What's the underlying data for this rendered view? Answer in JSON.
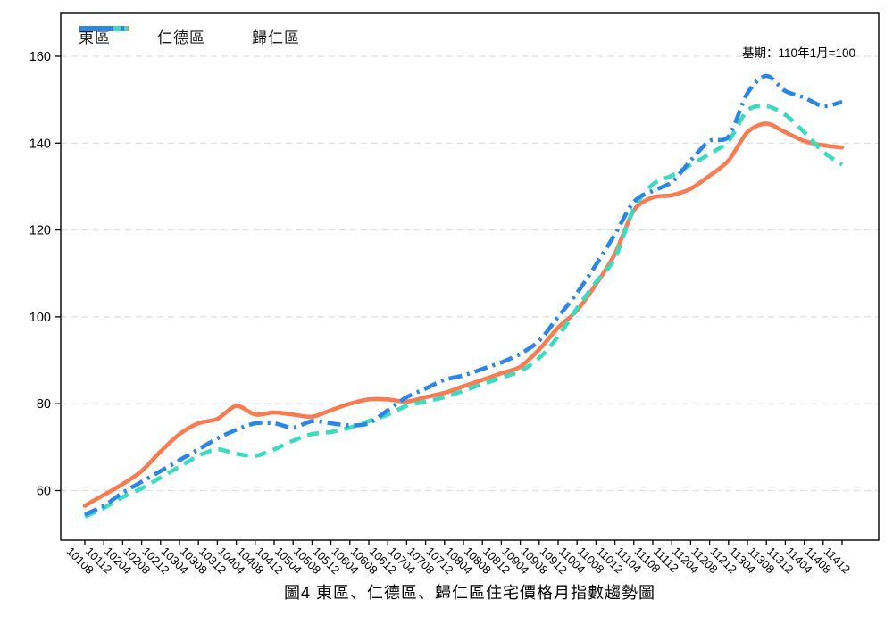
{
  "title": "圖4 東區、仁德區、歸仁區住宅價格月指數趨勢圖",
  "base_period_note": "基期：110年1月=100",
  "colors": {
    "dong": "#F87C52",
    "rende": "#3CDBC0",
    "guiren": "#2B87E3",
    "grid": "#dadfe3",
    "axis": "#000000"
  },
  "chart_data": {
    "type": "line",
    "title": "圖4 東區、仁德區、歸仁區住宅價格月指數趨勢圖",
    "annotation": "基期：110年1月=100",
    "grid": "horizontal-dashed",
    "legend_position": "top-left-inside",
    "yticks": [
      60,
      80,
      100,
      120,
      140,
      160
    ],
    "ylim": [
      51,
      166
    ],
    "x": [
      "10108",
      "10112",
      "10204",
      "10208",
      "10212",
      "10304",
      "10308",
      "10312",
      "10404",
      "10408",
      "10412",
      "10504",
      "10508",
      "10512",
      "10604",
      "10608",
      "10612",
      "10704",
      "10708",
      "10712",
      "10804",
      "10808",
      "10812",
      "10904",
      "10908",
      "10912",
      "11004",
      "11008",
      "11012",
      "11104",
      "11108",
      "11112",
      "11204",
      "11208",
      "11212",
      "11304",
      "11308",
      "11312",
      "11404",
      "11408",
      "11412"
    ],
    "series": [
      {
        "key": "dong",
        "name": "東區",
        "style": "solid",
        "color_key": "dong",
        "values": [
          56.5,
          59,
          61.5,
          64.5,
          69,
          73,
          75.5,
          76.5,
          79.5,
          77.5,
          78,
          77.5,
          77,
          78.5,
          80,
          81,
          81,
          80.5,
          81.5,
          82.5,
          84,
          85.5,
          87,
          88.5,
          92.5,
          97.5,
          101.5,
          107.5,
          114.5,
          124.5,
          127.5,
          128,
          129.5,
          132.5,
          136,
          142.5,
          144.5,
          142.5,
          140.5,
          139.5,
          139
        ]
      },
      {
        "key": "rende",
        "name": "仁德區",
        "style": "dashed",
        "color_key": "rende",
        "values": [
          54,
          56,
          58.5,
          60.5,
          63,
          65.5,
          68,
          69.5,
          68.5,
          68,
          69.5,
          71.5,
          73,
          73.5,
          74.5,
          76,
          77.5,
          79.5,
          80.5,
          81.5,
          83,
          84.5,
          86,
          87.5,
          90.5,
          95.5,
          102,
          108,
          113.5,
          125,
          130.5,
          132.5,
          135,
          137.5,
          140.5,
          147.5,
          148.5,
          146.5,
          142.5,
          138,
          135
        ]
      },
      {
        "key": "guiren",
        "name": "歸仁區",
        "style": "dashdot",
        "color_key": "guiren",
        "values": [
          54.5,
          56.5,
          59.5,
          62,
          64.5,
          67,
          69.5,
          72,
          74,
          75.5,
          75.5,
          74.5,
          76,
          75.5,
          75,
          75.5,
          78.5,
          81.5,
          83.5,
          85.5,
          86.5,
          88,
          89.5,
          91.5,
          94.5,
          100,
          105.5,
          112,
          119,
          126.5,
          129,
          131,
          136,
          140.5,
          141.5,
          151.5,
          155.5,
          152,
          150.5,
          148.5,
          149.5
        ]
      }
    ]
  }
}
